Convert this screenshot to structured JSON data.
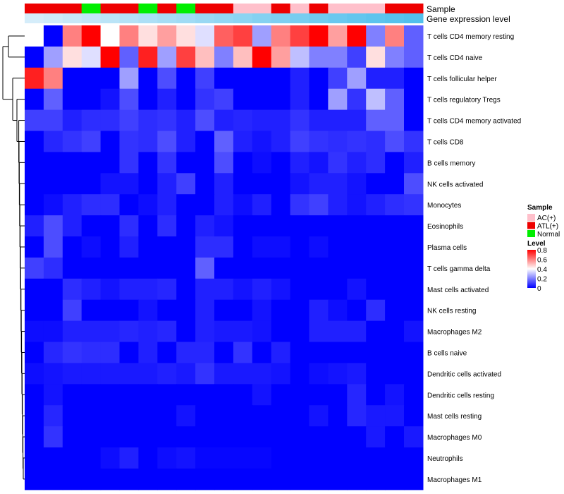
{
  "chart_data": {
    "type": "heatmap",
    "annotation_rows": [
      {
        "title": "Sample"
      },
      {
        "title": "Gene expression level"
      }
    ],
    "columns": {
      "sample": [
        "ATL(+)",
        "ATL(+)",
        "ATL(+)",
        "Normal",
        "ATL(+)",
        "ATL(+)",
        "Normal",
        "ATL(+)",
        "Normal",
        "ATL(+)",
        "ATL(+)",
        "AC(+)",
        "AC(+)",
        "ATL(+)",
        "AC(+)",
        "ATL(+)",
        "AC(+)",
        "AC(+)",
        "AC(+)",
        "ATL(+)",
        "ATL(+)"
      ],
      "expression_level": [
        0.02,
        0.07,
        0.12,
        0.17,
        0.22,
        0.27,
        0.32,
        0.37,
        0.42,
        0.47,
        0.52,
        0.57,
        0.62,
        0.67,
        0.72,
        0.77,
        0.82,
        0.87,
        0.92,
        0.96,
        1.0
      ]
    },
    "rows": [
      "T cells CD4 memory resting",
      "T cells CD4 naive",
      "T cells follicular helper",
      "T cells regulatory  Tregs",
      "T cells CD4 memory activated",
      "T cells CD8",
      "B cells memory",
      "NK cells activated",
      "Monocytes",
      "Eosinophils",
      "Plasma cells",
      "T cells gamma delta",
      "Mast cells activated",
      "NK cells resting",
      "Macrophages M2",
      "B cells naive",
      "Dendritic cells activated",
      "Dendritic cells resting",
      "Mast cells resting",
      "Macrophages M0",
      "Neutrophils",
      "Macrophages M1"
    ],
    "values": [
      [
        0.4,
        0.0,
        0.6,
        0.8,
        0.4,
        0.6,
        0.45,
        0.55,
        0.45,
        0.35,
        0.65,
        0.7,
        0.25,
        0.6,
        0.7,
        0.8,
        0.55,
        0.8,
        0.2,
        0.6,
        0.15
      ],
      [
        0.0,
        0.25,
        0.45,
        0.35,
        0.8,
        0.15,
        0.75,
        0.25,
        0.7,
        0.5,
        0.2,
        0.5,
        0.8,
        0.55,
        0.3,
        0.2,
        0.2,
        0.1,
        0.45,
        0.2,
        0.15
      ],
      [
        0.75,
        0.6,
        0.0,
        0.0,
        0.0,
        0.25,
        0.0,
        0.12,
        0.0,
        0.1,
        0.0,
        0.0,
        0.0,
        0.0,
        0.05,
        0.0,
        0.1,
        0.25,
        0.05,
        0.05,
        0.0
      ],
      [
        0.0,
        0.15,
        0.0,
        0.0,
        0.03,
        0.12,
        0.0,
        0.05,
        0.0,
        0.08,
        0.1,
        0.0,
        0.0,
        0.0,
        0.05,
        0.0,
        0.25,
        0.08,
        0.3,
        0.15,
        0.0
      ],
      [
        0.1,
        0.1,
        0.05,
        0.07,
        0.07,
        0.1,
        0.07,
        0.08,
        0.05,
        0.12,
        0.05,
        0.06,
        0.05,
        0.05,
        0.08,
        0.05,
        0.05,
        0.05,
        0.15,
        0.15,
        0.0
      ],
      [
        0.0,
        0.06,
        0.08,
        0.1,
        0.0,
        0.08,
        0.07,
        0.12,
        0.05,
        0.0,
        0.15,
        0.05,
        0.03,
        0.05,
        0.1,
        0.08,
        0.07,
        0.08,
        0.07,
        0.12,
        0.08
      ],
      [
        0.0,
        0.0,
        0.0,
        0.0,
        0.0,
        0.08,
        0.0,
        0.08,
        0.0,
        0.0,
        0.12,
        0.0,
        0.02,
        0.0,
        0.05,
        0.03,
        0.08,
        0.05,
        0.07,
        0.0,
        0.05
      ],
      [
        0.0,
        0.0,
        0.0,
        0.0,
        0.03,
        0.03,
        0.0,
        0.05,
        0.1,
        0.0,
        0.05,
        0.0,
        0.0,
        0.0,
        0.03,
        0.05,
        0.05,
        0.03,
        0.0,
        0.0,
        0.12
      ],
      [
        0.0,
        0.02,
        0.05,
        0.07,
        0.07,
        0.0,
        0.02,
        0.05,
        0.0,
        0.0,
        0.05,
        0.02,
        0.05,
        0.0,
        0.08,
        0.1,
        0.05,
        0.03,
        0.05,
        0.07,
        0.08
      ],
      [
        0.05,
        0.12,
        0.05,
        0.0,
        0.0,
        0.07,
        0.0,
        0.07,
        0.0,
        0.05,
        0.03,
        0.0,
        0.0,
        0.0,
        0.0,
        0.0,
        0.0,
        0.0,
        0.0,
        0.0,
        0.0
      ],
      [
        0.0,
        0.12,
        0.0,
        0.02,
        0.0,
        0.05,
        0.0,
        0.0,
        0.0,
        0.07,
        0.07,
        0.0,
        0.02,
        0.02,
        0.0,
        0.02,
        0.0,
        0.0,
        0.0,
        0.0,
        0.0
      ],
      [
        0.1,
        0.07,
        0.0,
        0.0,
        0.0,
        0.0,
        0.0,
        0.0,
        0.0,
        0.15,
        0.0,
        0.0,
        0.0,
        0.0,
        0.0,
        0.0,
        0.0,
        0.0,
        0.0,
        0.0,
        0.0
      ],
      [
        0.0,
        0.0,
        0.07,
        0.05,
        0.03,
        0.05,
        0.05,
        0.06,
        0.0,
        0.05,
        0.05,
        0.03,
        0.05,
        0.03,
        0.0,
        0.0,
        0.0,
        0.03,
        0.0,
        0.0,
        0.0
      ],
      [
        0.0,
        0.0,
        0.1,
        0.0,
        0.0,
        0.0,
        0.03,
        0.0,
        0.0,
        0.05,
        0.0,
        0.0,
        0.03,
        0.0,
        0.0,
        0.05,
        0.02,
        0.0,
        0.07,
        0.0,
        0.0
      ],
      [
        0.02,
        0.02,
        0.05,
        0.05,
        0.05,
        0.06,
        0.05,
        0.06,
        0.0,
        0.05,
        0.04,
        0.04,
        0.03,
        0.0,
        0.0,
        0.05,
        0.05,
        0.05,
        0.0,
        0.0,
        0.03
      ],
      [
        0.0,
        0.06,
        0.08,
        0.07,
        0.07,
        0.0,
        0.05,
        0.0,
        0.06,
        0.06,
        0.0,
        0.08,
        0.0,
        0.05,
        0.0,
        0.0,
        0.0,
        0.0,
        0.0,
        0.0,
        0.0
      ],
      [
        0.02,
        0.03,
        0.04,
        0.04,
        0.04,
        0.04,
        0.04,
        0.05,
        0.04,
        0.08,
        0.04,
        0.04,
        0.04,
        0.03,
        0.0,
        0.02,
        0.03,
        0.04,
        0.0,
        0.0,
        0.0
      ],
      [
        0.0,
        0.03,
        0.0,
        0.0,
        0.0,
        0.0,
        0.0,
        0.0,
        0.0,
        0.0,
        0.0,
        0.0,
        0.03,
        0.0,
        0.0,
        0.0,
        0.0,
        0.06,
        0.0,
        0.03,
        0.0
      ],
      [
        0.0,
        0.06,
        0.0,
        0.0,
        0.0,
        0.0,
        0.0,
        0.0,
        0.03,
        0.0,
        0.0,
        0.0,
        0.0,
        0.0,
        0.0,
        0.03,
        0.0,
        0.06,
        0.04,
        0.04,
        0.0
      ],
      [
        0.0,
        0.08,
        0.0,
        0.0,
        0.0,
        0.0,
        0.0,
        0.0,
        0.0,
        0.0,
        0.0,
        0.0,
        0.0,
        0.0,
        0.0,
        0.0,
        0.0,
        0.0,
        0.04,
        0.0,
        0.04
      ],
      [
        0.0,
        0.0,
        0.0,
        0.0,
        0.02,
        0.05,
        0.0,
        0.02,
        0.03,
        0.01,
        0.01,
        0.01,
        0.01,
        0.0,
        0.0,
        0.0,
        0.0,
        0.0,
        0.0,
        0.0,
        0.0
      ],
      [
        0.0,
        0.0,
        0.0,
        0.0,
        0.0,
        0.0,
        0.0,
        0.0,
        0.0,
        0.0,
        0.0,
        0.0,
        0.0,
        0.0,
        0.0,
        0.0,
        0.0,
        0.0,
        0.0,
        0.0,
        0.0
      ]
    ],
    "legend": {
      "sample_title": "Sample",
      "sample_entries": [
        {
          "label": "AC(+)",
          "color": "#ffc0cb"
        },
        {
          "label": "ATL(+)",
          "color": "#ee0000"
        },
        {
          "label": "Normal",
          "color": "#00ee00"
        }
      ],
      "level_title": "Level",
      "level_ticks": [
        "0.8",
        "0.6",
        "0.4",
        "0.2",
        "0"
      ],
      "level_tick_values": [
        0.8,
        0.6,
        0.4,
        0.2,
        0
      ],
      "level_range": [
        0,
        0.8
      ]
    },
    "colorscale": {
      "low": "#0000ff",
      "mid": "#ffffff",
      "high": "#ff0000",
      "min": 0,
      "max": 0.8
    },
    "expression_colors": {
      "low": "#d8eefa",
      "high": "#52c0ec"
    }
  }
}
